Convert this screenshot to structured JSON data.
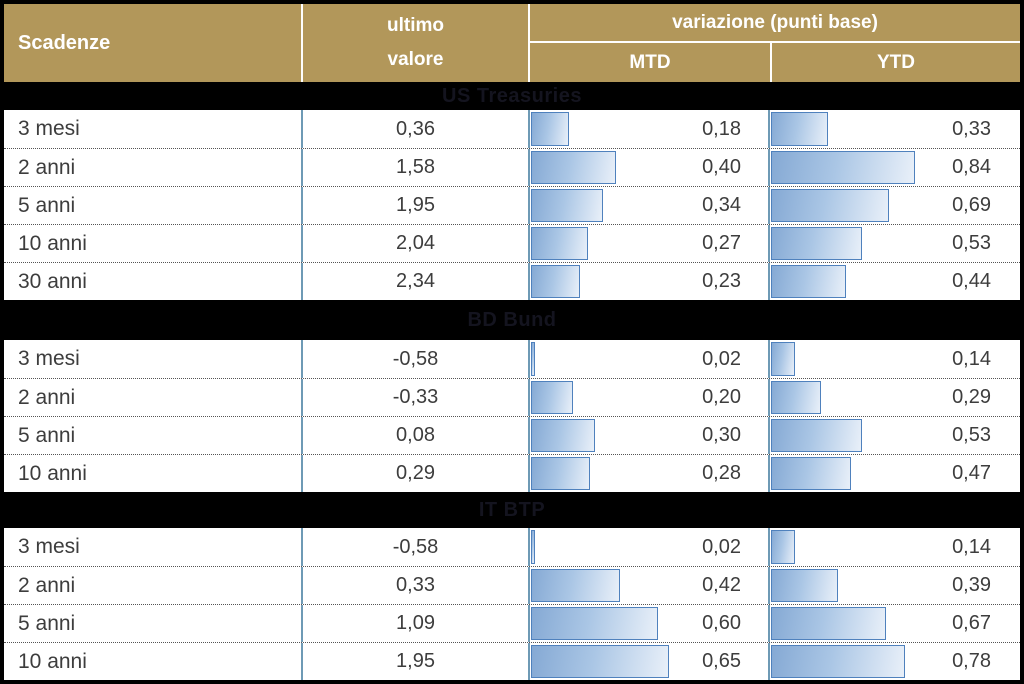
{
  "header": {
    "scadenze": "Scadenze",
    "ultimo_line1": "ultimo",
    "ultimo_line2": "valore",
    "variazione": "variazione (punti base)",
    "mtd": "MTD",
    "ytd": "YTD"
  },
  "colors": {
    "header_bg": "#b2975a",
    "header_text": "#ffffff",
    "band_bg": "#000000",
    "band_text": "#14141f",
    "bar_border": "#4f81bd",
    "bar_fill_left": "#85a9d4",
    "bar_fill_right": "#e9f0f9",
    "divider_blue": "#6e9ab5",
    "row_text": "#3d3d3d"
  },
  "sections": [
    {
      "title": "US Treasuries",
      "rows": [
        {
          "label": "3 mesi",
          "ultimo": "0,36",
          "mtd": "0,18",
          "ytd": "0,33",
          "mtd_value": 0.18,
          "ytd_value": 0.33
        },
        {
          "label": "2 anni",
          "ultimo": "1,58",
          "mtd": "0,40",
          "ytd": "0,84",
          "mtd_value": 0.4,
          "ytd_value": 0.84
        },
        {
          "label": "5 anni",
          "ultimo": "1,95",
          "mtd": "0,34",
          "ytd": "0,69",
          "mtd_value": 0.34,
          "ytd_value": 0.69
        },
        {
          "label": "10 anni",
          "ultimo": "2,04",
          "mtd": "0,27",
          "ytd": "0,53",
          "mtd_value": 0.27,
          "ytd_value": 0.53
        },
        {
          "label": "30 anni",
          "ultimo": "2,34",
          "mtd": "0,23",
          "ytd": "0,44",
          "mtd_value": 0.23,
          "ytd_value": 0.44
        }
      ]
    },
    {
      "title": "BD Bund",
      "rows": [
        {
          "label": "3 mesi",
          "ultimo": "-0,58",
          "mtd": "0,02",
          "ytd": "0,14",
          "mtd_value": 0.02,
          "ytd_value": 0.14
        },
        {
          "label": "2 anni",
          "ultimo": "-0,33",
          "mtd": "0,20",
          "ytd": "0,29",
          "mtd_value": 0.2,
          "ytd_value": 0.29
        },
        {
          "label": "5 anni",
          "ultimo": "0,08",
          "mtd": "0,30",
          "ytd": "0,53",
          "mtd_value": 0.3,
          "ytd_value": 0.53
        },
        {
          "label": "10 anni",
          "ultimo": "0,29",
          "mtd": "0,28",
          "ytd": "0,47",
          "mtd_value": 0.28,
          "ytd_value": 0.47
        }
      ]
    },
    {
      "title": "IT BTP",
      "rows": [
        {
          "label": "3 mesi",
          "ultimo": "-0,58",
          "mtd": "0,02",
          "ytd": "0,14",
          "mtd_value": 0.02,
          "ytd_value": 0.14
        },
        {
          "label": "2 anni",
          "ultimo": "0,33",
          "mtd": "0,42",
          "ytd": "0,39",
          "mtd_value": 0.42,
          "ytd_value": 0.39
        },
        {
          "label": "5 anni",
          "ultimo": "1,09",
          "mtd": "0,60",
          "ytd": "0,67",
          "mtd_value": 0.6,
          "ytd_value": 0.67
        },
        {
          "label": "10 anni",
          "ultimo": "1,95",
          "mtd": "0,65",
          "ytd": "0,78",
          "mtd_value": 0.65,
          "ytd_value": 0.78
        }
      ]
    }
  ],
  "chart_data": {
    "type": "table",
    "title": "variazione (punti base)",
    "columns": [
      "Scadenze",
      "ultimo valore",
      "MTD",
      "YTD"
    ],
    "bar_columns": [
      "MTD",
      "YTD"
    ],
    "sections": [
      {
        "name": "US Treasuries",
        "rows": [
          [
            "3 mesi",
            0.36,
            0.18,
            0.33
          ],
          [
            "2 anni",
            1.58,
            0.4,
            0.84
          ],
          [
            "5 anni",
            1.95,
            0.34,
            0.69
          ],
          [
            "10 anni",
            2.04,
            0.27,
            0.53
          ],
          [
            "30 anni",
            2.34,
            0.23,
            0.44
          ]
        ]
      },
      {
        "name": "BD Bund",
        "rows": [
          [
            "3 mesi",
            -0.58,
            0.02,
            0.14
          ],
          [
            "2 anni",
            -0.33,
            0.2,
            0.29
          ],
          [
            "5 anni",
            0.08,
            0.3,
            0.53
          ],
          [
            "10 anni",
            0.29,
            0.28,
            0.47
          ]
        ]
      },
      {
        "name": "IT BTP",
        "rows": [
          [
            "3 mesi",
            -0.58,
            0.02,
            0.14
          ],
          [
            "2 anni",
            0.33,
            0.42,
            0.39
          ],
          [
            "5 anni",
            1.09,
            0.6,
            0.67
          ],
          [
            "10 anni",
            1.95,
            0.65,
            0.78
          ]
        ]
      },
      {
        "bar_scale_note": "bar length proportional to value; per-column max (MTD 0.65, YTD 0.84) rendered at ~58% of cell width"
      }
    ]
  }
}
